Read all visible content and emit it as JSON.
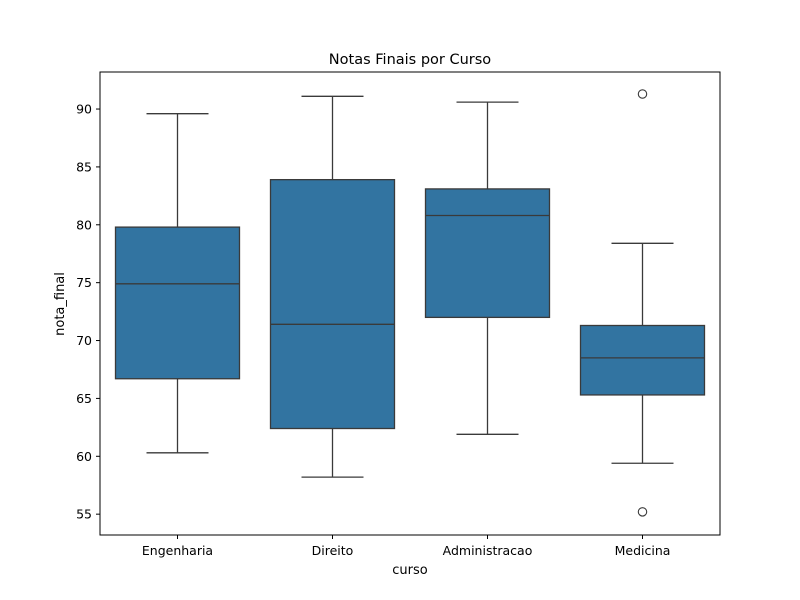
{
  "chart_data": {
    "type": "boxplot",
    "title": "Notas Finais por Curso",
    "xlabel": "curso",
    "ylabel": "nota_final",
    "ylim": [
      53.2,
      93.2
    ],
    "yticks": [
      55,
      60,
      65,
      70,
      75,
      80,
      85,
      90
    ],
    "grid": false,
    "box_color": "#3274a1",
    "line_color": "#3a3a3a",
    "categories": [
      "Engenharia",
      "Direito",
      "Administracao",
      "Medicina"
    ],
    "boxes": [
      {
        "category": "Engenharia",
        "whisker_low": 60.3,
        "q1": 66.7,
        "median": 74.9,
        "q3": 79.8,
        "whisker_high": 89.6,
        "outliers": []
      },
      {
        "category": "Direito",
        "whisker_low": 58.2,
        "q1": 62.4,
        "median": 71.4,
        "q3": 83.9,
        "whisker_high": 91.1,
        "outliers": []
      },
      {
        "category": "Administracao",
        "whisker_low": 61.9,
        "q1": 72.0,
        "median": 80.8,
        "q3": 83.1,
        "whisker_high": 90.6,
        "outliers": []
      },
      {
        "category": "Medicina",
        "whisker_low": 59.4,
        "q1": 65.3,
        "median": 68.5,
        "q3": 71.3,
        "whisker_high": 78.4,
        "outliers": [
          91.3,
          55.2
        ]
      }
    ]
  }
}
